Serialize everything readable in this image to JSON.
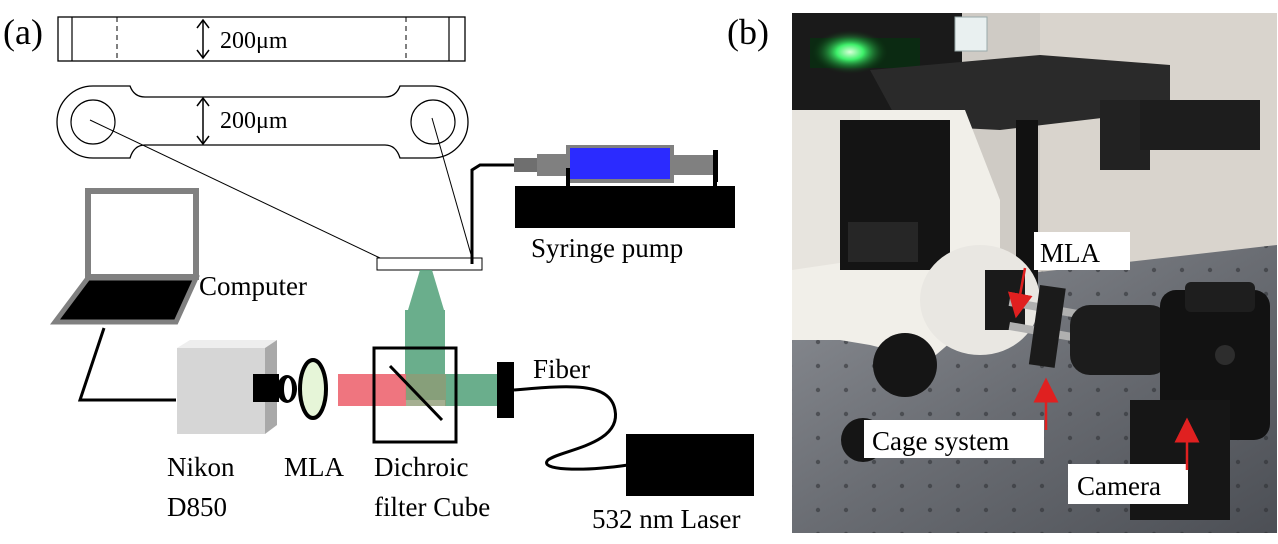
{
  "panel_a": {
    "label": "(a)",
    "channel_top_dim": "200μm",
    "channel_side_dim": "200μm",
    "syringe_pump": "Syringe pump",
    "computer": "Computer",
    "camera_line1": "Nikon",
    "camera_line2": "D850",
    "mla": "MLA",
    "dichroic_line1": "Dichroic",
    "dichroic_line2": "filter Cube",
    "fiber": "Fiber",
    "laser": "532 nm Laser",
    "colors": {
      "syringe_fluid": "#2b2bff",
      "green_beam": "#5aa57f",
      "red_beam": "#ee6e78",
      "camera_body": "#d6d6d6",
      "mla_lens": "#e6f5d8"
    },
    "icons": [
      "laptop-icon",
      "camera-icon",
      "lens-icon",
      "dichroic-cube-icon",
      "laser-icon",
      "syringe-pump-icon"
    ]
  },
  "panel_b": {
    "label": "(b)",
    "mla": "MLA",
    "cage_system": "Cage system",
    "camera": "Camera",
    "arrow_color": "#e02020"
  }
}
